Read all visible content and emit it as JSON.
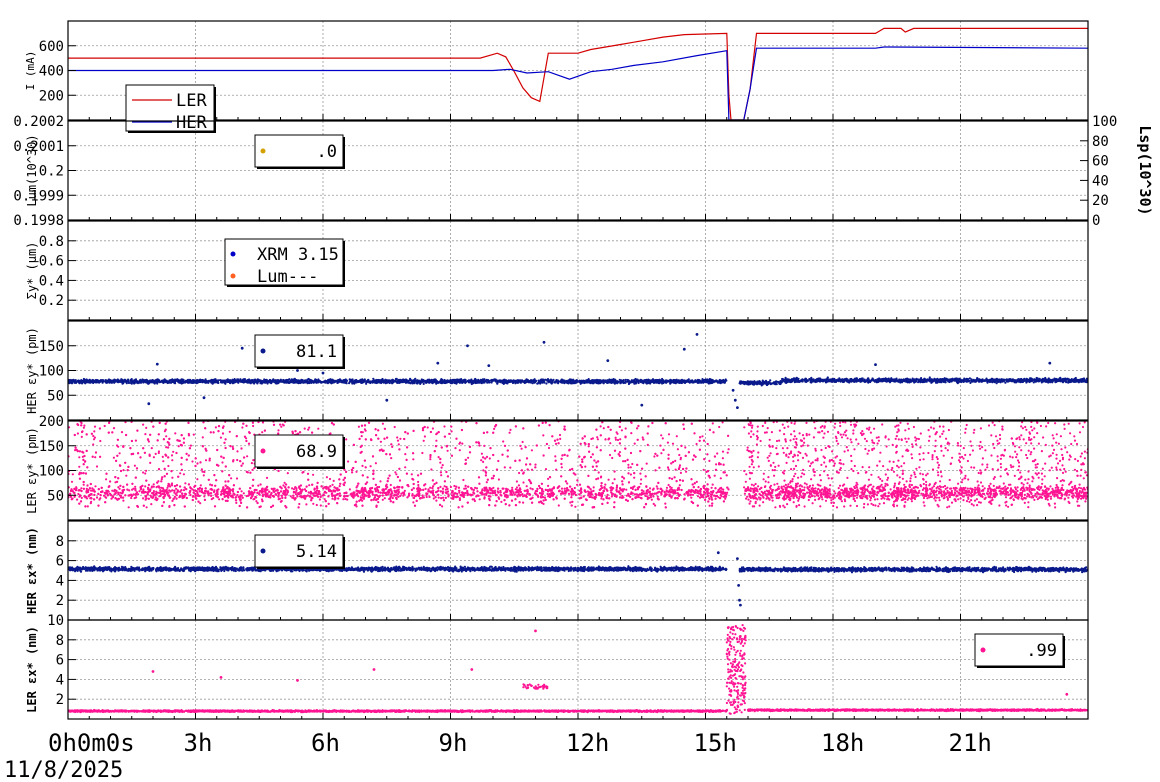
{
  "chart_data": {
    "type": "scatter",
    "x_axis": {
      "unit": "hour",
      "range": [
        0,
        24
      ],
      "ticks": [
        {
          "hour": 0,
          "label": "0h0m0s"
        },
        {
          "hour": 3,
          "label": "3h"
        },
        {
          "hour": 6,
          "label": "6h"
        },
        {
          "hour": 9,
          "label": "9h"
        },
        {
          "hour": 12,
          "label": "12h"
        },
        {
          "hour": 15,
          "label": "15h"
        },
        {
          "hour": 18,
          "label": "18h"
        },
        {
          "hour": 21,
          "label": "21h"
        }
      ],
      "date_label": "11/8/2025"
    },
    "grid": true,
    "panels": [
      {
        "id": "current",
        "type": "line",
        "ylabel": "I (mA)",
        "ylim": [
          0,
          800
        ],
        "yticks": [
          200,
          400,
          600
        ],
        "legend": {
          "placement": "bottom-left",
          "entries": [
            {
              "label": "LER",
              "color": "#d40000"
            },
            {
              "label": "HER",
              "color": "#0000c8"
            }
          ]
        },
        "series": [
          {
            "name": "LER",
            "color": "#d40000",
            "points": [
              [
                0,
                500
              ],
              [
                9.7,
                500
              ],
              [
                10.1,
                540
              ],
              [
                10.3,
                510
              ],
              [
                10.5,
                390
              ],
              [
                10.7,
                260
              ],
              [
                10.9,
                180
              ],
              [
                11.1,
                150
              ],
              [
                11.3,
                540
              ],
              [
                12.0,
                540
              ],
              [
                12.3,
                570
              ],
              [
                13.0,
                610
              ],
              [
                13.5,
                640
              ],
              [
                14.0,
                670
              ],
              [
                14.5,
                690
              ],
              [
                15.5,
                700
              ],
              [
                15.55,
                200
              ],
              [
                15.6,
                0
              ],
              [
                15.9,
                0
              ],
              [
                16.05,
                250
              ],
              [
                16.2,
                700
              ],
              [
                19.0,
                700
              ],
              [
                19.2,
                740
              ],
              [
                19.6,
                740
              ],
              [
                19.7,
                710
              ],
              [
                19.9,
                740
              ],
              [
                24,
                740
              ]
            ]
          },
          {
            "name": "HER",
            "color": "#0000c8",
            "points": [
              [
                0,
                400
              ],
              [
                10.0,
                400
              ],
              [
                10.4,
                410
              ],
              [
                10.8,
                380
              ],
              [
                11.3,
                390
              ],
              [
                11.8,
                330
              ],
              [
                12.3,
                390
              ],
              [
                12.8,
                410
              ],
              [
                13.3,
                440
              ],
              [
                14.0,
                470
              ],
              [
                14.8,
                520
              ],
              [
                15.5,
                560
              ],
              [
                15.55,
                0
              ],
              [
                15.9,
                0
              ],
              [
                16.05,
                250
              ],
              [
                16.2,
                580
              ],
              [
                19.0,
                580
              ],
              [
                19.2,
                590
              ],
              [
                24,
                580
              ]
            ]
          }
        ]
      },
      {
        "id": "lum",
        "type": "scatter",
        "ylabel": "Lum(10^30)",
        "ylim": [
          0.1998,
          0.2002
        ],
        "yticks": [
          0.1998,
          0.1999,
          0.2,
          0.2001,
          0.2002
        ],
        "ytick_labels": [
          "0.1998",
          "0.1999",
          "0.2",
          "0.2001",
          "0.2002"
        ],
        "y2label": "Lsp(10^30)",
        "y2lim": [
          0,
          100
        ],
        "y2ticks": [
          0,
          20,
          40,
          60,
          80,
          100
        ],
        "legend": {
          "placement": "top-left",
          "entries": [
            {
              "label": ".0",
              "color": "#d4a000"
            }
          ]
        },
        "series": []
      },
      {
        "id": "sigma_y",
        "type": "scatter",
        "ylabel": "Σy* (μm)",
        "ylim": [
          0,
          1
        ],
        "yticks": [
          0.2,
          0.4,
          0.6,
          0.8
        ],
        "legend": {
          "placement": "top-left",
          "entries": [
            {
              "label": "XRM 3.15",
              "color": "#0000c8"
            },
            {
              "label": "Lum---",
              "color": "#ff6020"
            }
          ]
        },
        "series": []
      },
      {
        "id": "her_emit_y",
        "type": "scatter",
        "ylabel": "HER εy* (pm)",
        "ylim": [
          0,
          200
        ],
        "yticks": [
          50,
          100,
          150
        ],
        "legend": {
          "placement": "top-left",
          "entries": [
            {
              "label": "81.1",
              "color": "#0a1a8c"
            }
          ]
        },
        "series": [
          {
            "color": "#0a1a8c",
            "segments": [
              {
                "x": [
                  0,
                  15.5
                ],
                "y": 78,
                "spread": 6
              },
              {
                "x": [
                  15.8,
                  16.8
                ],
                "y": 75,
                "spread": 6
              },
              {
                "x": [
                  16.8,
                  24
                ],
                "y": 80,
                "spread": 6
              }
            ],
            "outliers": [
              [
                2.1,
                113
              ],
              [
                4.1,
                145
              ],
              [
                5.4,
                100
              ],
              [
                6.0,
                95
              ],
              [
                8.7,
                115
              ],
              [
                9.4,
                150
              ],
              [
                9.9,
                110
              ],
              [
                11.2,
                157
              ],
              [
                12.7,
                120
              ],
              [
                14.5,
                143
              ],
              [
                14.8,
                173
              ],
              [
                15.65,
                60
              ],
              [
                15.7,
                40
              ],
              [
                15.75,
                25
              ],
              [
                19.0,
                112
              ],
              [
                23.1,
                115
              ],
              [
                1.9,
                33
              ],
              [
                3.2,
                45
              ],
              [
                7.5,
                40
              ],
              [
                13.5,
                30
              ]
            ]
          }
        ]
      },
      {
        "id": "ler_emit_y",
        "type": "scatter",
        "ylabel": "LER εy* (pm)",
        "ylim": [
          0,
          200
        ],
        "yticks": [
          50,
          100,
          150,
          200
        ],
        "legend": {
          "placement": "top-left",
          "entries": [
            {
              "label": "68.9",
              "color": "#ff1493"
            }
          ]
        },
        "series": [
          {
            "color": "#ff1493",
            "segments": [
              {
                "x": [
                  0,
                  15.55
                ],
                "y_min": 25,
                "y_max": 200,
                "core": 55
              },
              {
                "x": [
                  15.9,
                  24
                ],
                "y_min": 25,
                "y_max": 200,
                "core": 55
              }
            ]
          }
        ]
      },
      {
        "id": "her_emit_x",
        "type": "scatter",
        "ylabel": "HER εx* (nm)",
        "ylim": [
          0,
          10
        ],
        "yticks": [
          2,
          4,
          6,
          8
        ],
        "legend": {
          "placement": "top-left",
          "entries": [
            {
              "label": "5.14",
              "color": "#0a1a8c"
            }
          ]
        },
        "series": [
          {
            "color": "#0a1a8c",
            "segments": [
              {
                "x": [
                  0,
                  15.5
                ],
                "y": 5.15,
                "spread": 0.3
              },
              {
                "x": [
                  15.8,
                  24
                ],
                "y": 5.1,
                "spread": 0.3
              }
            ],
            "outliers": [
              [
                15.75,
                6.2
              ],
              [
                15.78,
                3.5
              ],
              [
                15.8,
                2.0
              ],
              [
                15.82,
                1.5
              ],
              [
                15.3,
                6.8
              ]
            ]
          }
        ]
      },
      {
        "id": "ler_emit_x",
        "type": "scatter",
        "ylabel": "LER εx* (nm)",
        "ylim": [
          0,
          10
        ],
        "yticks": [
          2,
          4,
          6,
          8,
          10
        ],
        "legend": {
          "placement": "top-right",
          "entries": [
            {
              "label": ".99",
              "color": "#ff1493"
            }
          ]
        },
        "series": [
          {
            "color": "#ff1493",
            "segments": [
              {
                "x": [
                  0,
                  15.5
                ],
                "y": 0.8,
                "spread": 0.12
              },
              {
                "x": [
                  16.0,
                  24
                ],
                "y": 0.9,
                "spread": 0.12
              }
            ],
            "burst": {
              "x": [
                15.5,
                15.95
              ],
              "y_min": 0.5,
              "y_max": 9.5
            },
            "bump": {
              "x": [
                10.7,
                11.3
              ],
              "y": 3.3
            },
            "outliers": [
              [
                2.0,
                4.8
              ],
              [
                3.6,
                4.2
              ],
              [
                5.4,
                3.9
              ],
              [
                7.2,
                5.0
              ],
              [
                9.5,
                5.0
              ],
              [
                11.0,
                8.9
              ],
              [
                23.5,
                2.5
              ]
            ]
          }
        ]
      }
    ]
  }
}
